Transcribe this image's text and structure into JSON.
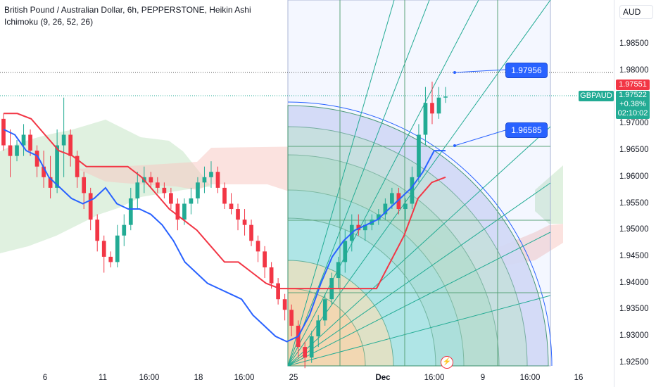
{
  "header": {
    "title": "British Pound / Australian Dollar, 6h, PEPPERSTONE, Heikin Ashi",
    "indicator": "Ichimoku (9, 26, 52, 26)"
  },
  "axis": {
    "currency": "AUD",
    "price_ticks": [
      "1.98500",
      "1.98000",
      "1.97500",
      "1.97000",
      "1.96500",
      "1.96000",
      "1.95500",
      "1.95000",
      "1.94500",
      "1.94000",
      "1.93500",
      "1.93000",
      "1.92500"
    ],
    "time_ticks": [
      {
        "label": "6",
        "bold": false
      },
      {
        "label": "11",
        "bold": false
      },
      {
        "label": "16:00",
        "bold": false
      },
      {
        "label": "18",
        "bold": false
      },
      {
        "label": "16:00",
        "bold": false
      },
      {
        "label": "25",
        "bold": false
      },
      {
        "label": "Dec",
        "bold": true
      },
      {
        "label": "16:00",
        "bold": false
      },
      {
        "label": "9",
        "bold": false
      },
      {
        "label": "16:00",
        "bold": false
      },
      {
        "label": "16",
        "bold": false
      }
    ]
  },
  "labels": {
    "red_price": "1.97551",
    "symbol": "GBPAUD",
    "last_price": "1.97522",
    "change": "+0.38%",
    "countdown": "02:10:02",
    "callout_upper": "1.97956",
    "callout_lower": "1.96585",
    "bolt": "⚡"
  },
  "colors": {
    "up": "#22ab94",
    "down": "#f23645",
    "conversion_line": "#2962ff",
    "base_line": "#f23645",
    "cloud_bull": "#a5d6a7",
    "cloud_bear": "#f7c5c0"
  },
  "chart_data": {
    "type": "candlestick",
    "title": "British Pound / Australian Dollar, 6h, PEPPERSTONE, Heikin Ashi",
    "ylim": [
      1.923,
      1.99
    ],
    "candles": [
      [
        1.971,
        1.972,
        1.965,
        1.966
      ],
      [
        1.966,
        1.969,
        1.96,
        1.964
      ],
      [
        1.964,
        1.967,
        1.963,
        1.966
      ],
      [
        1.966,
        1.97,
        1.964,
        1.968
      ],
      [
        1.968,
        1.969,
        1.964,
        1.965
      ],
      [
        1.965,
        1.966,
        1.96,
        1.962
      ],
      [
        1.962,
        1.965,
        1.958,
        1.96
      ],
      [
        1.96,
        1.964,
        1.956,
        1.958
      ],
      [
        1.958,
        1.969,
        1.957,
        1.966
      ],
      [
        1.966,
        1.975,
        1.96,
        1.968
      ],
      [
        1.968,
        1.969,
        1.962,
        1.964
      ],
      [
        1.964,
        1.965,
        1.958,
        1.96
      ],
      [
        1.96,
        1.961,
        1.954,
        1.957
      ],
      [
        1.957,
        1.958,
        1.95,
        1.952
      ],
      [
        1.952,
        1.953,
        1.946,
        1.948
      ],
      [
        1.948,
        1.949,
        1.942,
        1.945
      ],
      [
        1.945,
        1.946,
        1.943,
        1.944
      ],
      [
        1.944,
        1.951,
        1.943,
        1.949
      ],
      [
        1.949,
        1.953,
        1.947,
        1.951
      ],
      [
        1.951,
        1.958,
        1.95,
        1.956
      ],
      [
        1.956,
        1.961,
        1.954,
        1.959
      ],
      [
        1.959,
        1.962,
        1.957,
        1.96
      ],
      [
        1.96,
        1.961,
        1.958,
        1.959
      ],
      [
        1.959,
        1.96,
        1.957,
        1.958
      ],
      [
        1.958,
        1.959,
        1.956,
        1.957
      ],
      [
        1.957,
        1.958,
        1.954,
        1.955
      ],
      [
        1.955,
        1.956,
        1.95,
        1.952
      ],
      [
        1.952,
        1.956,
        1.951,
        1.955
      ],
      [
        1.955,
        1.958,
        1.953,
        1.956
      ],
      [
        1.956,
        1.96,
        1.955,
        1.959
      ],
      [
        1.959,
        1.962,
        1.957,
        1.96
      ],
      [
        1.96,
        1.963,
        1.958,
        1.961
      ],
      [
        1.961,
        1.962,
        1.957,
        1.958
      ],
      [
        1.958,
        1.959,
        1.954,
        1.955
      ],
      [
        1.955,
        1.957,
        1.953,
        1.954
      ],
      [
        1.954,
        1.955,
        1.95,
        1.952
      ],
      [
        1.952,
        1.954,
        1.949,
        1.951
      ],
      [
        1.951,
        1.952,
        1.947,
        1.948
      ],
      [
        1.948,
        1.949,
        1.944,
        1.946
      ],
      [
        1.946,
        1.947,
        1.941,
        1.943
      ],
      [
        1.943,
        1.944,
        1.939,
        1.94
      ],
      [
        1.94,
        1.941,
        1.936,
        1.937
      ],
      [
        1.937,
        1.938,
        1.933,
        1.935
      ],
      [
        1.935,
        1.936,
        1.93,
        1.932
      ],
      [
        1.932,
        1.933,
        1.926,
        1.928
      ],
      [
        1.928,
        1.929,
        1.924,
        1.926
      ],
      [
        1.926,
        1.931,
        1.925,
        1.93
      ],
      [
        1.93,
        1.934,
        1.928,
        1.933
      ],
      [
        1.933,
        1.938,
        1.932,
        1.937
      ],
      [
        1.937,
        1.942,
        1.936,
        1.941
      ],
      [
        1.941,
        1.945,
        1.939,
        1.944
      ],
      [
        1.944,
        1.95,
        1.942,
        1.948
      ],
      [
        1.948,
        1.953,
        1.946,
        1.951
      ],
      [
        1.951,
        1.953,
        1.949,
        1.95
      ],
      [
        1.95,
        1.952,
        1.948,
        1.951
      ],
      [
        1.951,
        1.953,
        1.95,
        1.952
      ],
      [
        1.952,
        1.954,
        1.951,
        1.953
      ],
      [
        1.953,
        1.956,
        1.952,
        1.955
      ],
      [
        1.955,
        1.958,
        1.954,
        1.957
      ],
      [
        1.957,
        1.958,
        1.953,
        1.954
      ],
      [
        1.954,
        1.956,
        1.952,
        1.955
      ],
      [
        1.955,
        1.962,
        1.954,
        1.96
      ],
      [
        1.96,
        1.97,
        1.959,
        1.968
      ],
      [
        1.968,
        1.977,
        1.966,
        1.974
      ],
      [
        1.974,
        1.978,
        1.97,
        1.972
      ],
      [
        1.972,
        1.977,
        1.971,
        1.975
      ],
      [
        1.975,
        1.977,
        1.974,
        1.9752
      ]
    ],
    "conversion_line": [
      1.969,
      1.968,
      1.965,
      1.964,
      1.96,
      1.958,
      1.956,
      1.955,
      1.956,
      1.958,
      1.955,
      1.954,
      1.954,
      1.953,
      1.951,
      1.948,
      1.944,
      1.942,
      1.94,
      1.939,
      1.938,
      1.937,
      1.934,
      1.932,
      1.93,
      1.929,
      1.93,
      1.934,
      1.94,
      1.945,
      1.948,
      1.95,
      1.951,
      1.952,
      1.954,
      1.956,
      1.958,
      1.961,
      1.965,
      1.965
    ],
    "base_line": [
      1.972,
      1.972,
      1.971,
      1.968,
      1.965,
      1.964,
      1.962,
      1.962,
      1.962,
      1.962,
      1.96,
      1.957,
      1.954,
      1.952,
      1.95,
      1.947,
      1.944,
      1.944,
      1.942,
      1.94,
      1.939,
      1.939,
      1.939,
      1.939,
      1.939,
      1.939,
      1.939,
      1.939,
      1.944,
      1.949,
      1.956,
      1.959,
      1.96
    ]
  }
}
